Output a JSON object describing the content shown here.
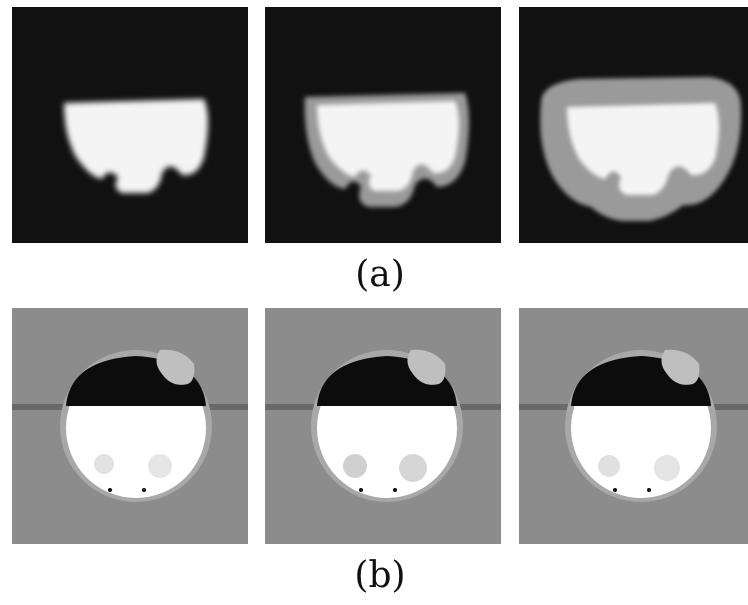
{
  "figure": {
    "row_a": {
      "caption": "(a)",
      "panels": [
        {
          "name": "mask-panel-1",
          "halo_level": 0
        },
        {
          "name": "mask-panel-2",
          "halo_level": 1
        },
        {
          "name": "mask-panel-3",
          "halo_level": 2
        }
      ]
    },
    "row_b": {
      "caption": "(b)",
      "panels": [
        {
          "name": "ct-panel-1"
        },
        {
          "name": "ct-panel-2"
        },
        {
          "name": "ct-panel-3"
        }
      ]
    },
    "colors": {
      "mask_background": "#111111",
      "mask_shape": "#f4f4f4",
      "mask_halo": "#9a9a9a",
      "ct_background": "#8c8c8c",
      "ct_dark_region": "#0c0c0c",
      "ct_bright_region": "#ffffff"
    }
  }
}
